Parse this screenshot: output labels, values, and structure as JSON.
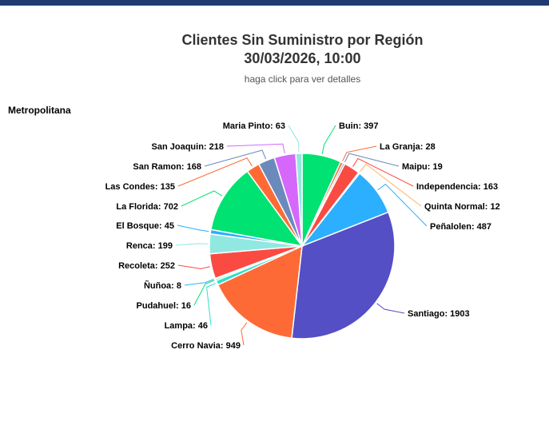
{
  "header": {
    "title_line1": "Clientes Sin Suministro por Región",
    "title_line2": "30/03/2026, 10:00",
    "subtitle": "haga click para ver detalles"
  },
  "region_label": "Metropolitana",
  "chart_data": {
    "type": "pie",
    "title": "Clientes Sin Suministro por Región 30/03/2026, 10:00",
    "subtitle": "haga click para ver detalles",
    "slices": [
      {
        "name": "Buin",
        "value": 397,
        "color": "#00e272"
      },
      {
        "name": "La Granja",
        "value": 28,
        "color": "#fe6a35"
      },
      {
        "name": "Maipu",
        "value": 19,
        "color": "#6b8abc"
      },
      {
        "name": "Independencia",
        "value": 163,
        "color": "#fa4b42"
      },
      {
        "name": "Quinta Normal",
        "value": 12,
        "color": "#feb56a"
      },
      {
        "name": "Peñalolen",
        "value": 487,
        "color": "#2caffe"
      },
      {
        "name": "Santiago",
        "value": 1903,
        "color": "#544fc5"
      },
      {
        "name": "Cerro Navia",
        "value": 949,
        "color": "#fe6a35"
      },
      {
        "name": "Lampa",
        "value": 46,
        "color": "#2ee0ca"
      },
      {
        "name": "Pudahuel",
        "value": 16,
        "color": "#00e272"
      },
      {
        "name": "Ñuñoa",
        "value": 8,
        "color": "#2caffe"
      },
      {
        "name": "Recoleta",
        "value": 252,
        "color": "#fa4b42"
      },
      {
        "name": "Renca",
        "value": 199,
        "color": "#91e8e1"
      },
      {
        "name": "El Bosque",
        "value": 45,
        "color": "#2caffe"
      },
      {
        "name": "La Florida",
        "value": 702,
        "color": "#00e272"
      },
      {
        "name": "Las Condes",
        "value": 135,
        "color": "#fe6a35"
      },
      {
        "name": "San Ramon",
        "value": 168,
        "color": "#6b8abc"
      },
      {
        "name": "San Joaquin",
        "value": 218,
        "color": "#d568fb"
      },
      {
        "name": "Maria Pinto",
        "value": 63,
        "color": "#91e8e1"
      }
    ]
  }
}
